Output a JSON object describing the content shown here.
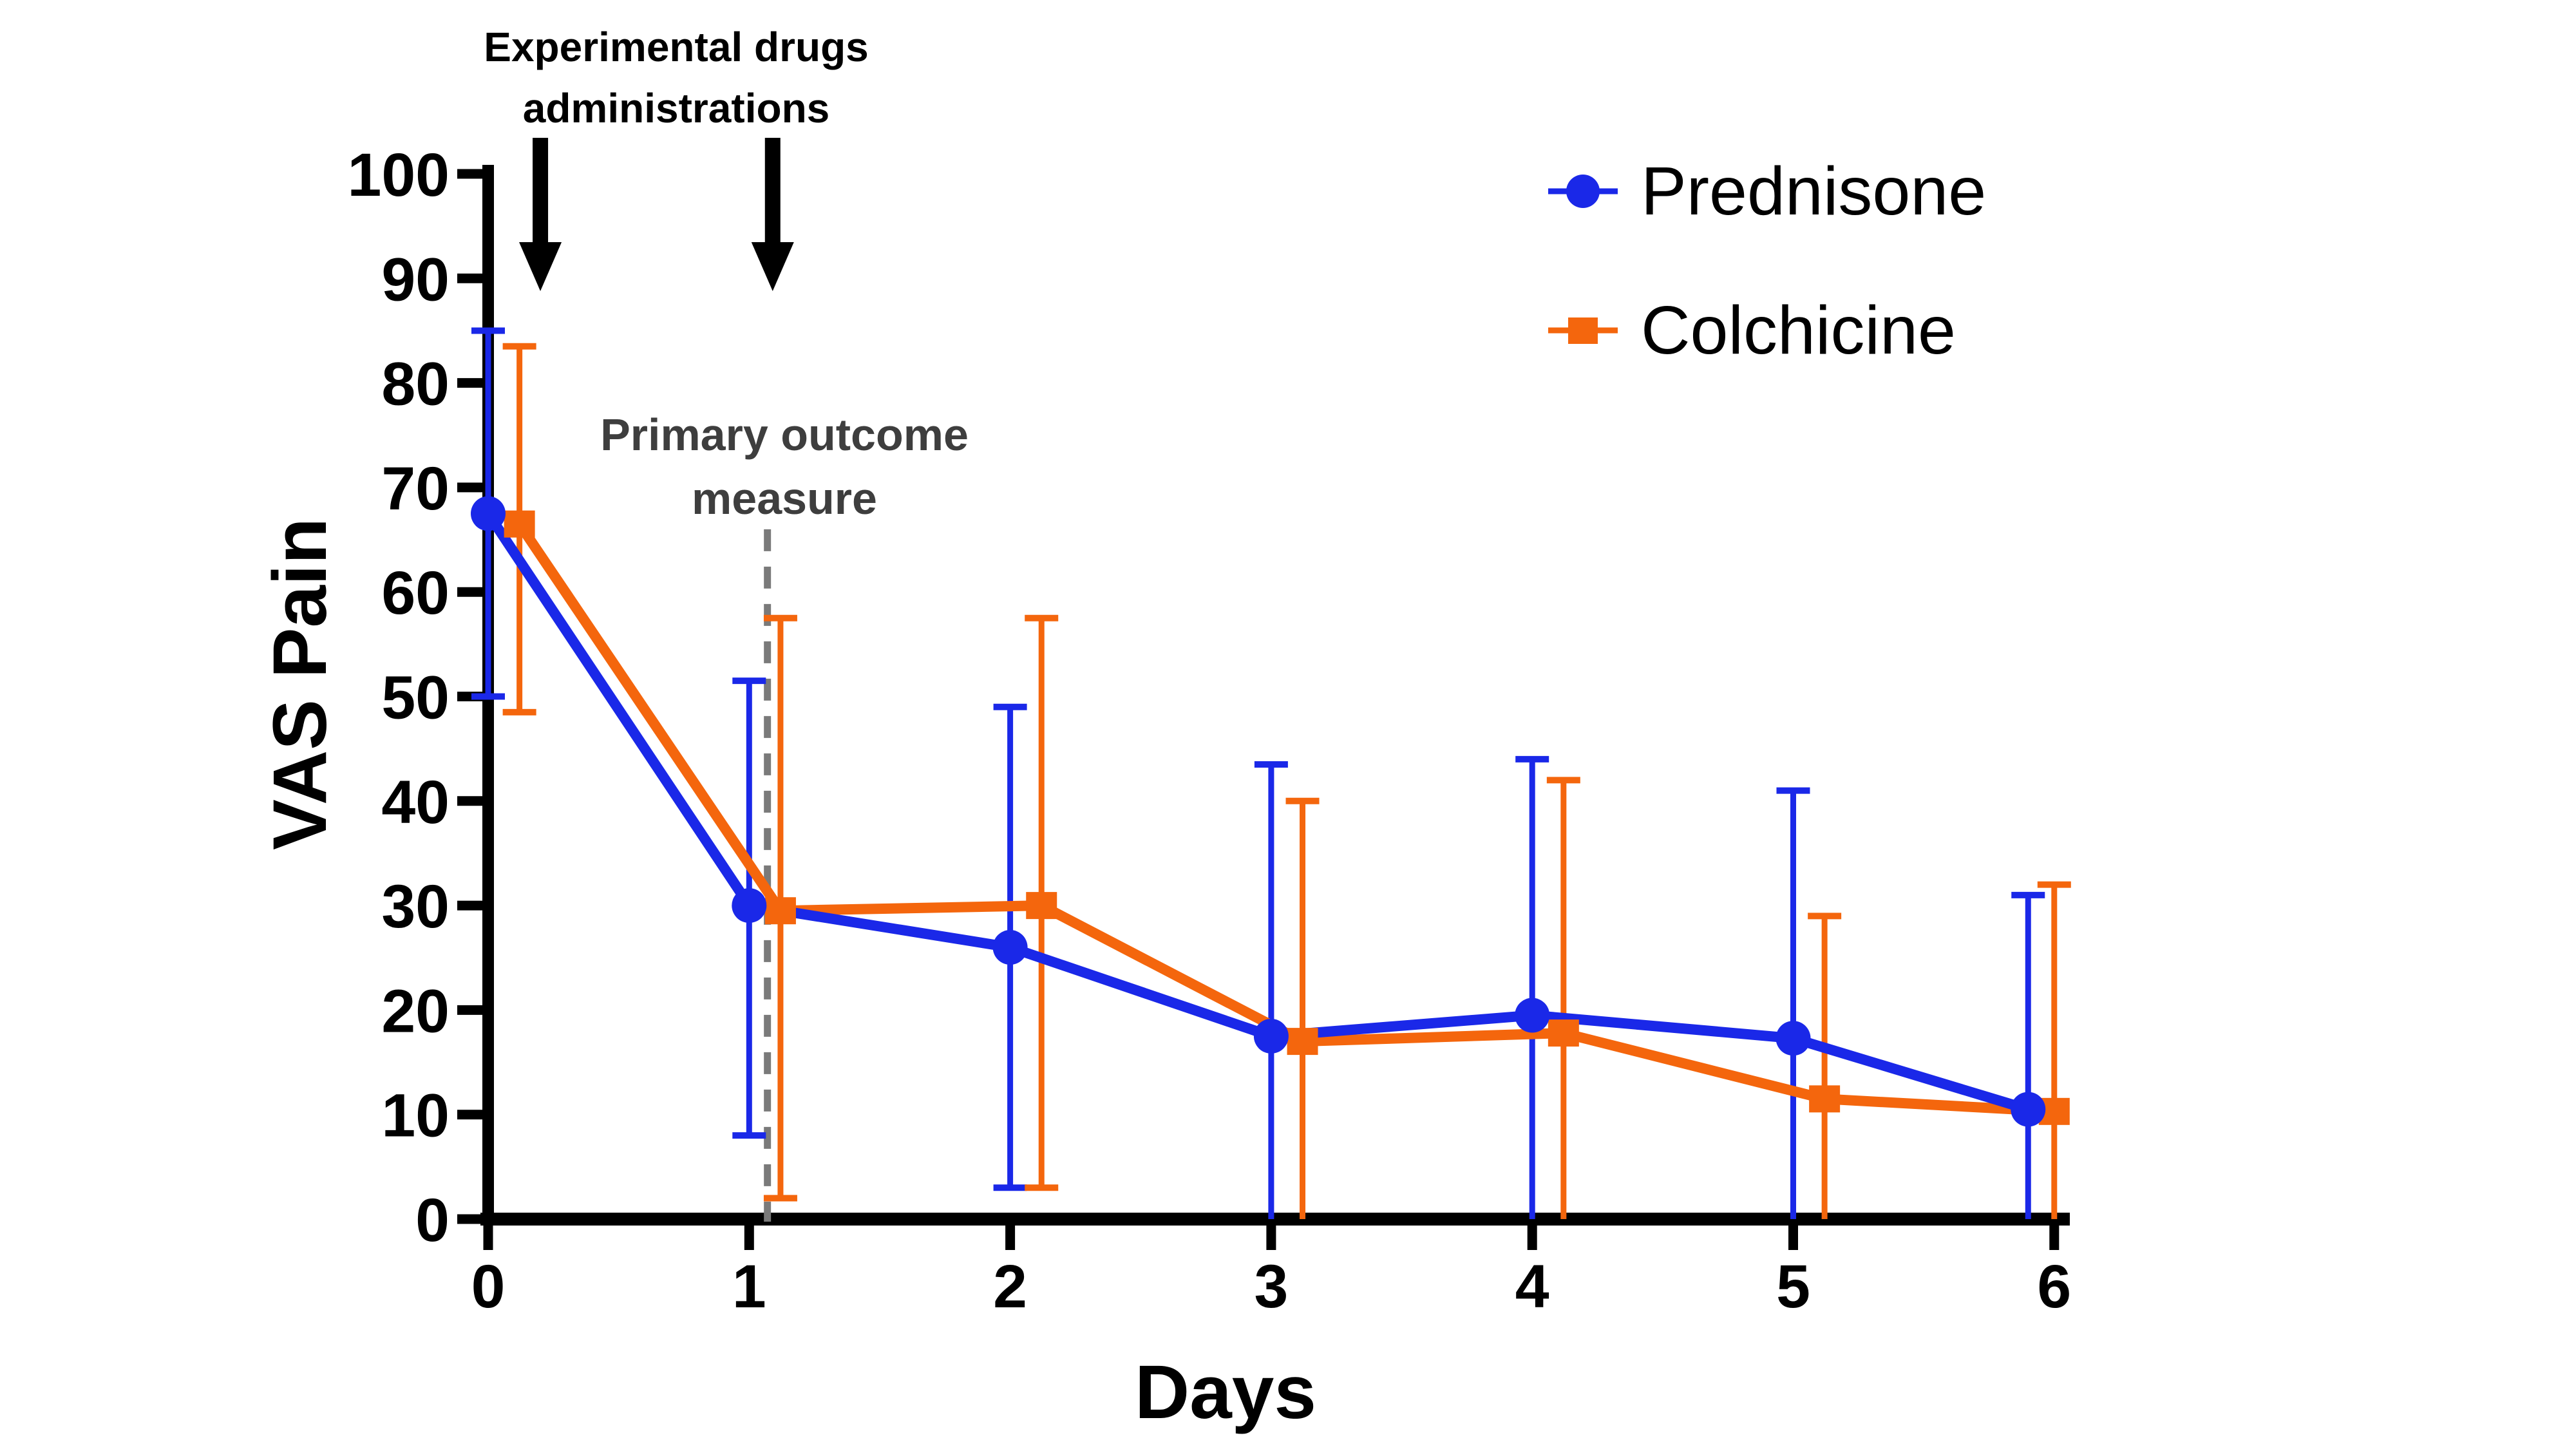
{
  "figure": {
    "background": "#ffffff"
  },
  "chart_data": {
    "type": "line",
    "title": "",
    "xlabel": "Days",
    "ylabel": "VAS Pain",
    "xticks": [
      0,
      1,
      2,
      3,
      4,
      5,
      6
    ],
    "yticks": [
      0,
      10,
      20,
      30,
      40,
      50,
      60,
      70,
      80,
      90,
      100
    ],
    "xlim": [
      0,
      6
    ],
    "ylim": [
      0,
      100
    ],
    "grid": false,
    "legend_position": "upper right",
    "series": [
      {
        "name": "Prednisone",
        "color": "#1A28E8",
        "marker": "circle",
        "x": [
          0,
          1,
          2,
          3,
          4,
          5,
          5.9
        ],
        "y": [
          67.5,
          30,
          26,
          17.5,
          19.5,
          17.3,
          10.5
        ],
        "err_top": [
          85,
          51.5,
          49,
          43.5,
          44,
          41,
          31
        ],
        "err_bottom": [
          50,
          8,
          3,
          0,
          0,
          0,
          0
        ],
        "bottom_cap": [
          true,
          true,
          true,
          false,
          false,
          false,
          false
        ]
      },
      {
        "name": "Colchicine",
        "color": "#F4660D",
        "marker": "square",
        "x": [
          0.12,
          1.12,
          2.12,
          3.12,
          4.12,
          5.12,
          6
        ],
        "y": [
          66.5,
          29.5,
          30,
          17,
          17.8,
          11.5,
          10.3
        ],
        "err_top": [
          83.5,
          57.5,
          57.5,
          40,
          42,
          29,
          32
        ],
        "err_bottom": [
          48.5,
          2,
          3,
          0,
          0,
          0,
          0
        ],
        "bottom_cap": [
          true,
          true,
          true,
          false,
          false,
          false,
          false
        ]
      }
    ],
    "annotations": {
      "drugs": {
        "text": "Experimental drugs administrations",
        "arrow_days": [
          0.2,
          1.09
        ]
      },
      "primary": {
        "text": "Primary outcome measure",
        "day": 1.07,
        "y_top": 66,
        "line_style": "dashed",
        "line_color": "#7A7A7A"
      }
    }
  }
}
